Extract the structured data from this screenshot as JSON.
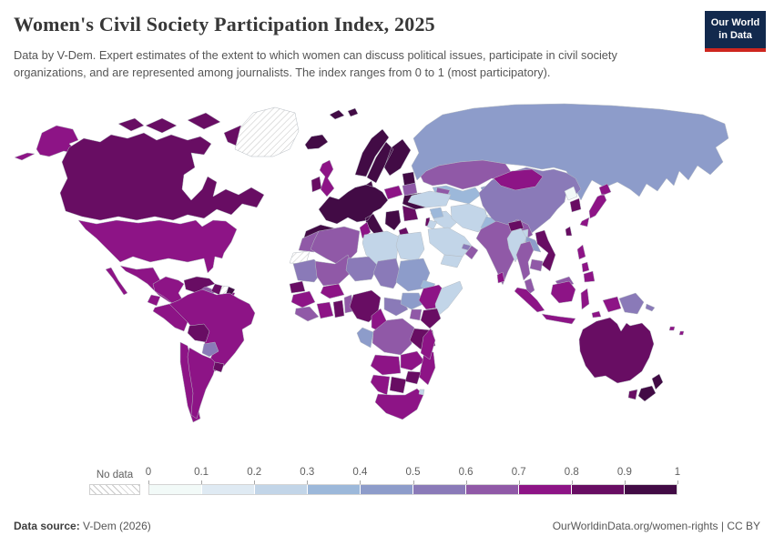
{
  "header": {
    "title": "Women's Civil Society Participation Index, 2025",
    "subtitle": "Data by V-Dem. Expert estimates of the extent to which women can discuss political issues, participate in civil society organizations, and are represented among journalists. The index ranges from 0 to 1 (most participatory)."
  },
  "logo": {
    "line1": "Our World",
    "line2": "in Data",
    "bg_color": "#12294d",
    "accent_color": "#ce261f"
  },
  "legend": {
    "no_data_label": "No data",
    "tick_labels": [
      "0",
      "0.1",
      "0.2",
      "0.3",
      "0.4",
      "0.5",
      "0.6",
      "0.7",
      "0.8",
      "0.9",
      "1"
    ],
    "bin_colors": [
      "#f2faf8",
      "#dfeaf3",
      "#c2d5e8",
      "#9cb8da",
      "#8d9cca",
      "#8a7ab8",
      "#9059a7",
      "#8d1486",
      "#680d63",
      "#420b45"
    ]
  },
  "footer": {
    "source_label": "Data source:",
    "source_text": " V-Dem (2026)",
    "rights_text": "OurWorldinData.org/women-rights | CC BY"
  },
  "map": {
    "countries": {
      "alaska": 7,
      "canada": 8,
      "canada-islands": 8,
      "greenland": "nodata",
      "usa": 7,
      "mexico": 7,
      "guatemala": 8,
      "honduras": 7,
      "nicaragua": 3,
      "costa-rica-panama": 7,
      "cuba": 6,
      "haiti": 2,
      "dominican-republic": 7,
      "jamaica": 6,
      "colombia": 7,
      "venezuela": 8,
      "guyana": 8,
      "suriname": "nodata",
      "french-guiana": 9,
      "ecuador": 7,
      "peru": 7,
      "brazil": 7,
      "bolivia": 8,
      "paraguay": 5,
      "chile": 7,
      "argentina": 7,
      "uruguay": 8,
      "iceland": 9,
      "uk": 7,
      "ireland": 8,
      "scandinavia": 9,
      "svalbard": 9,
      "denmark": 9,
      "baltics": 9,
      "europe-west": 9,
      "poland": 7,
      "belarus": 6,
      "ukraine": 9,
      "romania-bulgaria": 8,
      "balkans": 9,
      "greece": 8,
      "russia": 4,
      "kazakhstan": 6,
      "uzbekistan-turkmenistan": 3,
      "kyrgyzstan-tajikistan": 4,
      "caucasus": 6,
      "turkey": 2,
      "syria": 3,
      "iraq": 2,
      "israel": 8,
      "jordan": 2,
      "saudi-arabia": 2,
      "yemen": 2,
      "oman": 6,
      "uae": 5,
      "iran": 2,
      "afghanistan": 0,
      "pakistan": 3,
      "india": 6,
      "nepal": 8,
      "bangladesh": 2,
      "sri-lanka": 7,
      "china": 5,
      "mongolia": 7,
      "north-korea": 0,
      "south-korea": 8,
      "japan": 7,
      "taiwan": 8,
      "myanmar": 2,
      "thailand": 6,
      "laos": 4,
      "vietnam": 8,
      "cambodia": 6,
      "malaysia": 6,
      "indonesia": 7,
      "philippines": 7,
      "papua-new-guinea": 5,
      "pacific-islands": 7,
      "australia": 8,
      "tasmania": 8,
      "new-zealand": 9,
      "morocco": 6,
      "western-sahara": "nodata",
      "algeria": 6,
      "tunisia": 7,
      "libya": 2,
      "egypt": 2,
      "mauritania": 5,
      "mali": 6,
      "niger": 5,
      "chad": 5,
      "sudan": 4,
      "eritrea-djibouti": 3,
      "senegal": 8,
      "guinea": 7,
      "sierra-leone-liberia": 6,
      "ivory-coast": 7,
      "ghana": 8,
      "burkina-faso": 7,
      "benin-togo": 6,
      "nigeria": 8,
      "cameroon": 7,
      "central-african-republic": 5,
      "south-sudan": 4,
      "ethiopia": 7,
      "somalia": 2,
      "kenya": 8,
      "uganda": 6,
      "drc": 6,
      "congo-gabon": 4,
      "tanzania": 8,
      "angola": 7,
      "zambia": 7,
      "malawi-mozambique": 7,
      "zimbabwe": 8,
      "botswana": 8,
      "namibia": 7,
      "south-africa": 7,
      "eswatini": 2,
      "madagascar": 7
    }
  }
}
